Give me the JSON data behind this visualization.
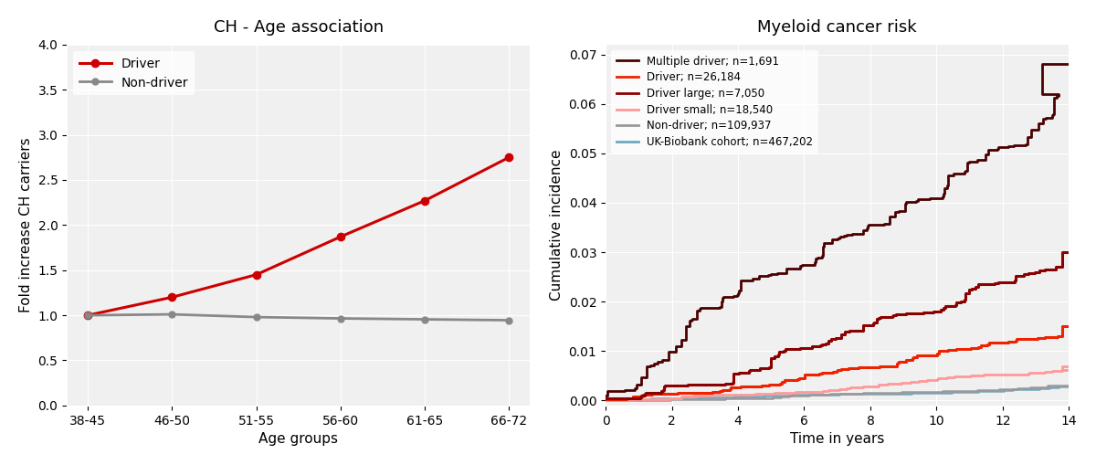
{
  "left_title": "CH - Age association",
  "left_xlabel": "Age groups",
  "left_ylabel": "Fold increase CH carriers",
  "left_categories": [
    "38-45",
    "46-50",
    "51-55",
    "56-60",
    "61-65",
    "66-72"
  ],
  "driver_values": [
    1.0,
    1.2,
    1.45,
    1.87,
    2.27,
    2.75
  ],
  "nondriver_values": [
    1.0,
    1.01,
    0.98,
    0.965,
    0.955,
    0.945
  ],
  "driver_color": "#cc0000",
  "nondriver_color": "#888888",
  "left_ylim": [
    0.0,
    4.0
  ],
  "left_yticks": [
    0.0,
    0.5,
    1.0,
    1.5,
    2.0,
    2.5,
    3.0,
    3.5,
    4.0
  ],
  "right_title": "Myeloid cancer risk",
  "right_xlabel": "Time in years",
  "right_ylabel": "Cumulative incidence",
  "right_xlim": [
    0,
    14
  ],
  "right_ylim": [
    -0.001,
    0.072
  ],
  "right_yticks": [
    0.0,
    0.01,
    0.02,
    0.03,
    0.04,
    0.05,
    0.06,
    0.07
  ],
  "right_xticks": [
    0,
    2,
    4,
    6,
    8,
    10,
    12,
    14
  ],
  "multi_driver_color": "#4a0000",
  "driver_surv_color": "#ee2200",
  "driver_large_color": "#8b0000",
  "driver_small_color": "#ff9999",
  "nondriver_surv_color": "#999999",
  "ukbiobank_color": "#6fa8c0",
  "legend_entries": [
    {
      "label": "Multiple driver; n=1,691",
      "color": "#4a0000"
    },
    {
      "label": "Driver; n=26,184",
      "color": "#ee2200"
    },
    {
      "label": "Driver large; n=7,050",
      "color": "#8b0000"
    },
    {
      "label": "Driver small; n=18,540",
      "color": "#ff9999"
    },
    {
      "label": "Non-driver; n=109,937",
      "color": "#999999"
    },
    {
      "label": "UK-Biobank cohort; n=467,202",
      "color": "#6fa8c0"
    }
  ]
}
